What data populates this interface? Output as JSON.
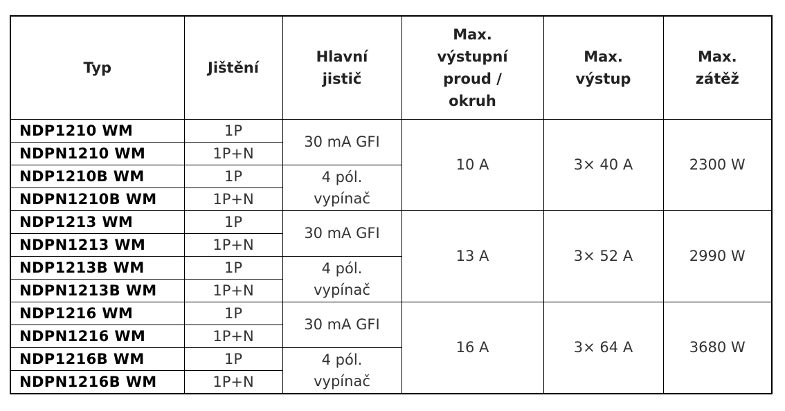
{
  "table": {
    "header": [
      [
        "Typ"
      ],
      [
        "Jištění"
      ],
      [
        "Hlavní",
        "jistič"
      ],
      [
        "Max.",
        "výstupní",
        "proud /",
        "okruh"
      ],
      [
        "Max.",
        "výstup"
      ],
      [
        "Max.",
        "zátěž"
      ]
    ],
    "groups": [
      {
        "current": "10 A",
        "output": "3× 40 A",
        "load": "2300 W",
        "breakers": [
          {
            "label": [
              "30 mA GFI"
            ],
            "models": [
              {
                "type": "NDP1210 WM",
                "protection": "1P"
              },
              {
                "type": "NDPN1210 WM",
                "protection": "1P+N"
              }
            ]
          },
          {
            "label": [
              "4 pól.",
              "vypínač"
            ],
            "models": [
              {
                "type": "NDP1210B WM",
                "protection": "1P"
              },
              {
                "type": "NDPN1210B WM",
                "protection": "1P+N"
              }
            ]
          }
        ]
      },
      {
        "current": "13 A",
        "output": "3× 52 A",
        "load": "2990 W",
        "breakers": [
          {
            "label": [
              "30 mA GFI"
            ],
            "models": [
              {
                "type": "NDP1213 WM",
                "protection": "1P"
              },
              {
                "type": "NDPN1213 WM",
                "protection": "1P+N"
              }
            ]
          },
          {
            "label": [
              "4 pól.",
              "vypínač"
            ],
            "models": [
              {
                "type": "NDP1213B WM",
                "protection": "1P"
              },
              {
                "type": "NDPN1213B WM",
                "protection": "1P+N"
              }
            ]
          }
        ]
      },
      {
        "current": "16 A",
        "output": "3× 64 A",
        "load": "3680 W",
        "breakers": [
          {
            "label": [
              "30 mA GFI"
            ],
            "models": [
              {
                "type": "NDP1216 WM",
                "protection": "1P"
              },
              {
                "type": "NDPN1216 WM",
                "protection": "1P+N"
              }
            ]
          },
          {
            "label": [
              "4 pól.",
              "vypínač"
            ],
            "models": [
              {
                "type": "NDP1216B WM",
                "protection": "1P"
              },
              {
                "type": "NDPN1216B WM",
                "protection": "1P+N"
              }
            ]
          }
        ]
      }
    ]
  }
}
